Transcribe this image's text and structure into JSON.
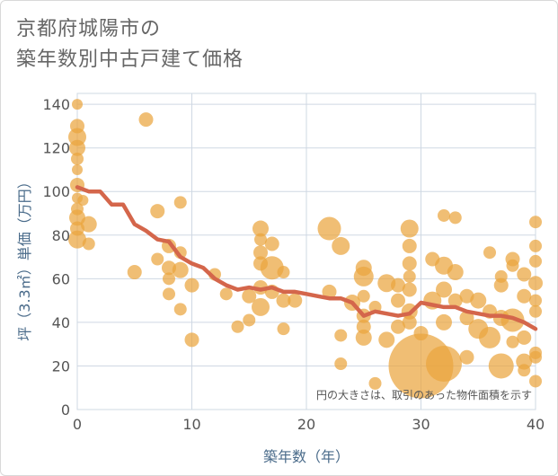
{
  "title": {
    "line1": "京都府城陽市の",
    "line2": "築年数別中古戸建て価格"
  },
  "colors": {
    "bubble": "#eaa53e",
    "trend": "#d4664b",
    "grid": "#cfd8e3",
    "plot_bg": "#ffffff",
    "axis_text": "#4a6b8a"
  },
  "chart_data": {
    "type": "scatter",
    "xlabel": "築年数（年）",
    "ylabel": "坪（3.3㎡）単価（万円）",
    "xlim": [
      0,
      40
    ],
    "ylim": [
      0,
      145
    ],
    "x_ticks": [
      0,
      10,
      20,
      30,
      40
    ],
    "y_ticks": [
      0,
      20,
      40,
      60,
      80,
      100,
      120,
      140
    ],
    "annotation": "円の大きさは、取引のあった物件面積を示す",
    "grid": true,
    "trend_line": {
      "x": [
        0,
        1,
        2,
        3,
        4,
        5,
        6,
        7,
        8,
        9,
        10,
        11,
        12,
        13,
        14,
        15,
        16,
        17,
        18,
        19,
        20,
        21,
        22,
        23,
        24,
        25,
        26,
        27,
        28,
        29,
        30,
        31,
        32,
        33,
        34,
        35,
        36,
        37,
        38,
        39,
        40
      ],
      "y": [
        102,
        100,
        100,
        94,
        94,
        85,
        82,
        78,
        77,
        70,
        67,
        65,
        60,
        57,
        55,
        56,
        55,
        56,
        54,
        54,
        53,
        52,
        51,
        51,
        49,
        43,
        45,
        44,
        43,
        44,
        49,
        48,
        47,
        47,
        45,
        44,
        43,
        43,
        42,
        40,
        37
      ]
    },
    "points": [
      {
        "x": 0,
        "y": 140,
        "size": 6
      },
      {
        "x": 0,
        "y": 130,
        "size": 8
      },
      {
        "x": 0,
        "y": 125,
        "size": 10
      },
      {
        "x": 0,
        "y": 120,
        "size": 9
      },
      {
        "x": 0,
        "y": 115,
        "size": 7
      },
      {
        "x": 0,
        "y": 110,
        "size": 6
      },
      {
        "x": 0,
        "y": 103,
        "size": 8
      },
      {
        "x": 0,
        "y": 97,
        "size": 6
      },
      {
        "x": 0,
        "y": 92,
        "size": 7
      },
      {
        "x": 0,
        "y": 88,
        "size": 9
      },
      {
        "x": 0,
        "y": 83,
        "size": 8
      },
      {
        "x": 0,
        "y": 78,
        "size": 10
      },
      {
        "x": 0.5,
        "y": 96,
        "size": 6
      },
      {
        "x": 1,
        "y": 85,
        "size": 9
      },
      {
        "x": 1,
        "y": 76,
        "size": 7
      },
      {
        "x": 6,
        "y": 133,
        "size": 8
      },
      {
        "x": 5,
        "y": 63,
        "size": 8
      },
      {
        "x": 7,
        "y": 91,
        "size": 8
      },
      {
        "x": 7,
        "y": 69,
        "size": 7
      },
      {
        "x": 8,
        "y": 75,
        "size": 8
      },
      {
        "x": 8,
        "y": 65,
        "size": 8
      },
      {
        "x": 8,
        "y": 60,
        "size": 7
      },
      {
        "x": 8,
        "y": 53,
        "size": 7
      },
      {
        "x": 9,
        "y": 95,
        "size": 7
      },
      {
        "x": 9,
        "y": 72,
        "size": 7
      },
      {
        "x": 9,
        "y": 64,
        "size": 9
      },
      {
        "x": 9,
        "y": 46,
        "size": 7
      },
      {
        "x": 10,
        "y": 57,
        "size": 8
      },
      {
        "x": 10,
        "y": 32,
        "size": 8
      },
      {
        "x": 12,
        "y": 62,
        "size": 7
      },
      {
        "x": 13,
        "y": 53,
        "size": 7
      },
      {
        "x": 14,
        "y": 38,
        "size": 7
      },
      {
        "x": 15,
        "y": 52,
        "size": 8
      },
      {
        "x": 15,
        "y": 41,
        "size": 7
      },
      {
        "x": 16,
        "y": 83,
        "size": 9
      },
      {
        "x": 16,
        "y": 78,
        "size": 7
      },
      {
        "x": 16,
        "y": 72,
        "size": 8
      },
      {
        "x": 16,
        "y": 67,
        "size": 8
      },
      {
        "x": 16,
        "y": 56,
        "size": 8
      },
      {
        "x": 16,
        "y": 47,
        "size": 10
      },
      {
        "x": 17,
        "y": 76,
        "size": 8
      },
      {
        "x": 17,
        "y": 65,
        "size": 13
      },
      {
        "x": 17,
        "y": 54,
        "size": 8
      },
      {
        "x": 18,
        "y": 63,
        "size": 7
      },
      {
        "x": 18,
        "y": 50,
        "size": 8
      },
      {
        "x": 18,
        "y": 37,
        "size": 7
      },
      {
        "x": 19,
        "y": 50,
        "size": 8
      },
      {
        "x": 22,
        "y": 83,
        "size": 13
      },
      {
        "x": 22,
        "y": 54,
        "size": 8
      },
      {
        "x": 23,
        "y": 75,
        "size": 10
      },
      {
        "x": 23,
        "y": 34,
        "size": 7
      },
      {
        "x": 23,
        "y": 21,
        "size": 7
      },
      {
        "x": 24,
        "y": 49,
        "size": 9
      },
      {
        "x": 25,
        "y": 65,
        "size": 9
      },
      {
        "x": 25,
        "y": 61,
        "size": 11
      },
      {
        "x": 25,
        "y": 52,
        "size": 7
      },
      {
        "x": 25,
        "y": 43,
        "size": 8
      },
      {
        "x": 25,
        "y": 38,
        "size": 8
      },
      {
        "x": 25,
        "y": 33,
        "size": 9
      },
      {
        "x": 26,
        "y": 47,
        "size": 7
      },
      {
        "x": 26,
        "y": 12,
        "size": 7
      },
      {
        "x": 27,
        "y": 58,
        "size": 10
      },
      {
        "x": 27,
        "y": 32,
        "size": 9
      },
      {
        "x": 28,
        "y": 57,
        "size": 8
      },
      {
        "x": 28,
        "y": 50,
        "size": 8
      },
      {
        "x": 28,
        "y": 38,
        "size": 8
      },
      {
        "x": 29,
        "y": 83,
        "size": 10
      },
      {
        "x": 29,
        "y": 75,
        "size": 8
      },
      {
        "x": 29,
        "y": 67,
        "size": 8
      },
      {
        "x": 29,
        "y": 61,
        "size": 7
      },
      {
        "x": 29,
        "y": 55,
        "size": 8
      },
      {
        "x": 29,
        "y": 45,
        "size": 9
      },
      {
        "x": 29,
        "y": 40,
        "size": 8
      },
      {
        "x": 30,
        "y": 20,
        "size": 36
      },
      {
        "x": 30,
        "y": 35,
        "size": 8
      },
      {
        "x": 31,
        "y": 69,
        "size": 8
      },
      {
        "x": 31,
        "y": 50,
        "size": 10
      },
      {
        "x": 32,
        "y": 89,
        "size": 7
      },
      {
        "x": 32,
        "y": 66,
        "size": 10
      },
      {
        "x": 32,
        "y": 55,
        "size": 9
      },
      {
        "x": 32,
        "y": 40,
        "size": 9
      },
      {
        "x": 32,
        "y": 21,
        "size": 20
      },
      {
        "x": 33,
        "y": 88,
        "size": 7
      },
      {
        "x": 33,
        "y": 63,
        "size": 9
      },
      {
        "x": 33,
        "y": 50,
        "size": 8
      },
      {
        "x": 34,
        "y": 52,
        "size": 8
      },
      {
        "x": 34,
        "y": 42,
        "size": 8
      },
      {
        "x": 34,
        "y": 24,
        "size": 8
      },
      {
        "x": 35,
        "y": 50,
        "size": 9
      },
      {
        "x": 35,
        "y": 37,
        "size": 11
      },
      {
        "x": 36,
        "y": 72,
        "size": 7
      },
      {
        "x": 36,
        "y": 45,
        "size": 8
      },
      {
        "x": 36,
        "y": 33,
        "size": 12
      },
      {
        "x": 37,
        "y": 61,
        "size": 7
      },
      {
        "x": 37,
        "y": 57,
        "size": 8
      },
      {
        "x": 37,
        "y": 42,
        "size": 9
      },
      {
        "x": 37,
        "y": 20,
        "size": 14
      },
      {
        "x": 38,
        "y": 69,
        "size": 8
      },
      {
        "x": 38,
        "y": 66,
        "size": 7
      },
      {
        "x": 38,
        "y": 41,
        "size": 13
      },
      {
        "x": 38,
        "y": 31,
        "size": 7
      },
      {
        "x": 39,
        "y": 62,
        "size": 8
      },
      {
        "x": 39,
        "y": 52,
        "size": 8
      },
      {
        "x": 39,
        "y": 33,
        "size": 8
      },
      {
        "x": 39,
        "y": 22,
        "size": 9
      },
      {
        "x": 39,
        "y": 18,
        "size": 7
      },
      {
        "x": 40,
        "y": 86,
        "size": 7
      },
      {
        "x": 40,
        "y": 75,
        "size": 7
      },
      {
        "x": 40,
        "y": 68,
        "size": 7
      },
      {
        "x": 40,
        "y": 58,
        "size": 8
      },
      {
        "x": 40,
        "y": 50,
        "size": 7
      },
      {
        "x": 40,
        "y": 45,
        "size": 7
      },
      {
        "x": 40,
        "y": 26,
        "size": 7
      },
      {
        "x": 40,
        "y": 24,
        "size": 7
      },
      {
        "x": 40,
        "y": 13,
        "size": 7
      }
    ]
  }
}
